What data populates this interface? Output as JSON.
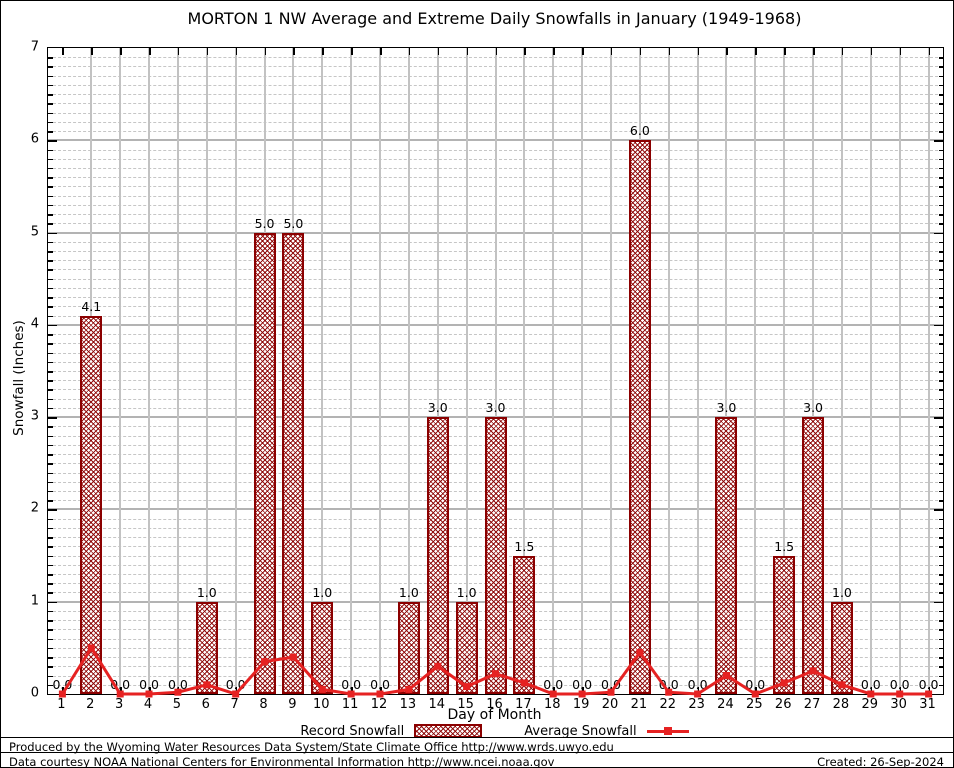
{
  "title": "MORTON 1 NW Average and Extreme Daily Snowfalls in January (1949-1968)",
  "y_axis": {
    "label": "Snowfall (Inches)",
    "min": 0,
    "max": 7,
    "major_step": 1,
    "minor_step": 0.1
  },
  "x_axis": {
    "label": "Day of Month",
    "first_day": 1,
    "last_day": 31
  },
  "legend": {
    "bar_label": "Record Snowfall",
    "line_label": "Average Snowfall"
  },
  "footer": {
    "line1": "Produced by the Wyoming Water Resources Data System/State Climate Office http://www.wrds.uwyo.edu",
    "line2": "Data courtesy NOAA National Centers for Environmental Information http://www.ncei.noaa.gov",
    "created": "Created: 26-Sep-2024"
  },
  "colors": {
    "bar_border": "#8b0000",
    "bar_hatch": "#8b0000",
    "avg_line": "#e62222",
    "grid_major": "#b3b3b3",
    "grid_minor": "#c6c6c6",
    "frame": "#000000"
  },
  "chart_data": {
    "type": "bar",
    "title": "MORTON 1 NW Average and Extreme Daily Snowfalls in January (1949-1968)",
    "xlabel": "Day of Month",
    "ylabel": "Snowfall (Inches)",
    "ylim": [
      0,
      7
    ],
    "grid": true,
    "legend_position": "bottom",
    "categories": [
      1,
      2,
      3,
      4,
      5,
      6,
      7,
      8,
      9,
      10,
      11,
      12,
      13,
      14,
      15,
      16,
      17,
      18,
      19,
      20,
      21,
      22,
      23,
      24,
      25,
      26,
      27,
      28,
      29,
      30,
      31
    ],
    "series": [
      {
        "name": "Record Snowfall",
        "type": "bar",
        "values": [
          0.0,
          4.1,
          0.0,
          0.0,
          0.0,
          1.0,
          0.0,
          5.0,
          5.0,
          1.0,
          0.0,
          0.0,
          1.0,
          3.0,
          1.0,
          3.0,
          1.5,
          0.0,
          0.0,
          0.0,
          6.0,
          0.0,
          0.0,
          3.0,
          0.0,
          1.5,
          3.0,
          1.0,
          0.0,
          0.0,
          0.0
        ],
        "labels": [
          "0.0",
          "4.1",
          "0.0",
          "0.0",
          "0.0",
          "1.0",
          "0.0",
          "5.0",
          "5.0",
          "1.0",
          "0.0",
          "0.0",
          "1.0",
          "3.0",
          "1.0",
          "3.0",
          "1.5",
          "0.0",
          "0.0",
          "0.0",
          "6.0",
          "0.0",
          "0.0",
          "3.0",
          "0.0",
          "1.5",
          "3.0",
          "1.0",
          "0.0",
          "0.0",
          "0.0"
        ]
      },
      {
        "name": "Average Snowfall",
        "type": "line",
        "values": [
          0.0,
          0.5,
          0.0,
          0.0,
          0.02,
          0.1,
          0.0,
          0.35,
          0.4,
          0.05,
          0.0,
          0.0,
          0.05,
          0.3,
          0.08,
          0.22,
          0.12,
          0.0,
          0.0,
          0.02,
          0.45,
          0.02,
          0.0,
          0.2,
          0.0,
          0.12,
          0.25,
          0.1,
          0.0,
          0.0,
          0.0
        ]
      }
    ]
  }
}
